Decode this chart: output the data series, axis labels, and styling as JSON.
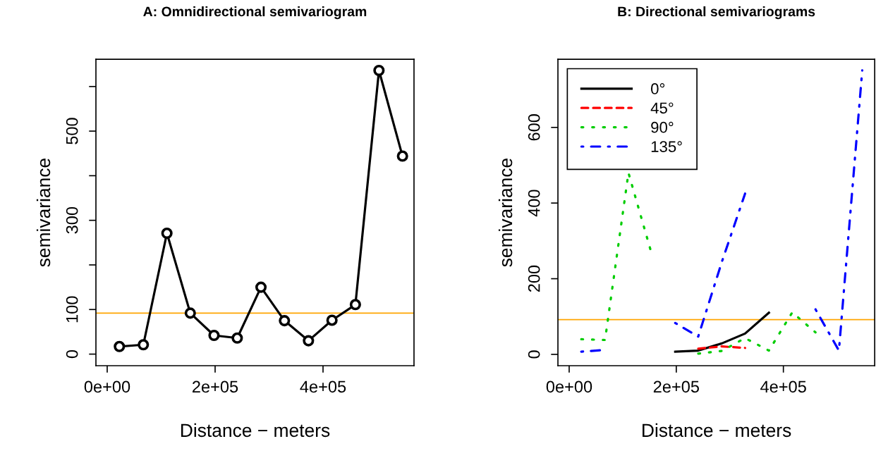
{
  "chart_data": [
    {
      "type": "line",
      "title": "A: Omnidirectional semivariogram",
      "xlabel": "Distance − meters",
      "ylabel": "semivariance",
      "x": [
        22600,
        67000,
        110700,
        154000,
        198000,
        241000,
        285000,
        328500,
        373000,
        416600,
        460000,
        503700,
        547300
      ],
      "series": [
        {
          "color": "#000000",
          "values": [
            17,
            21,
            271,
            92,
            42,
            36,
            150,
            75,
            30,
            76,
            111,
            636,
            444
          ]
        }
      ],
      "marker": "circle",
      "line_style": "solid",
      "xlim": [
        -20900,
        568600
      ],
      "ylim": [
        -26,
        661
      ],
      "xticks": [
        {
          "value": 0,
          "label": "0e+00"
        },
        {
          "value": 200000,
          "label": "2e+05"
        },
        {
          "value": 400000,
          "label": "4e+05"
        }
      ],
      "yticks": [
        0,
        100,
        {
          "value": 200,
          "label": null
        },
        300,
        {
          "value": 400,
          "label": null
        },
        500,
        {
          "value": 600,
          "label": null
        }
      ],
      "ref_lines": [
        {
          "axis": "y",
          "value": 92,
          "color": "#ffa500"
        }
      ],
      "grid": false,
      "legend": false
    },
    {
      "type": "line",
      "title": "B: Directional semivariograms",
      "xlabel": "Distance − meters",
      "ylabel": "semivariance",
      "x": [
        22600,
        67000,
        110700,
        154000,
        198000,
        241000,
        285000,
        328500,
        373000,
        416600,
        460000,
        503700,
        547300
      ],
      "series": [
        {
          "name": "0°",
          "color": "#000000",
          "line_style": "solid",
          "values": [
            null,
            null,
            null,
            null,
            7,
            10,
            29,
            55,
            110,
            null,
            null,
            null,
            null
          ]
        },
        {
          "name": "45°",
          "color": "#ff0000",
          "line_style": "dashed",
          "values": [
            null,
            null,
            null,
            null,
            null,
            15,
            21,
            17,
            null,
            null,
            null,
            null,
            null
          ]
        },
        {
          "name": "90°",
          "color": "#00cd00",
          "line_style": "dotted",
          "values": [
            40,
            38,
            480,
            266,
            null,
            2,
            9,
            43,
            10,
            111,
            58,
            null,
            null
          ]
        },
        {
          "name": "135°",
          "color": "#0000ff",
          "line_style": "dashdot",
          "values": [
            7,
            12,
            null,
            null,
            83,
            47,
            244,
            425,
            null,
            null,
            119,
            10,
            751
          ]
        }
      ],
      "marker": "none",
      "xlim": [
        -21000,
        570500
      ],
      "ylim": [
        -30,
        780
      ],
      "xticks": [
        {
          "value": 0,
          "label": "0e+00"
        },
        {
          "value": 200000,
          "label": "2e+05"
        },
        {
          "value": 400000,
          "label": "4e+05"
        }
      ],
      "yticks": [
        0,
        200,
        400,
        600
      ],
      "ref_lines": [
        {
          "axis": "y",
          "value": 92,
          "color": "#ffa500"
        }
      ],
      "grid": false,
      "legend": "top left"
    }
  ]
}
